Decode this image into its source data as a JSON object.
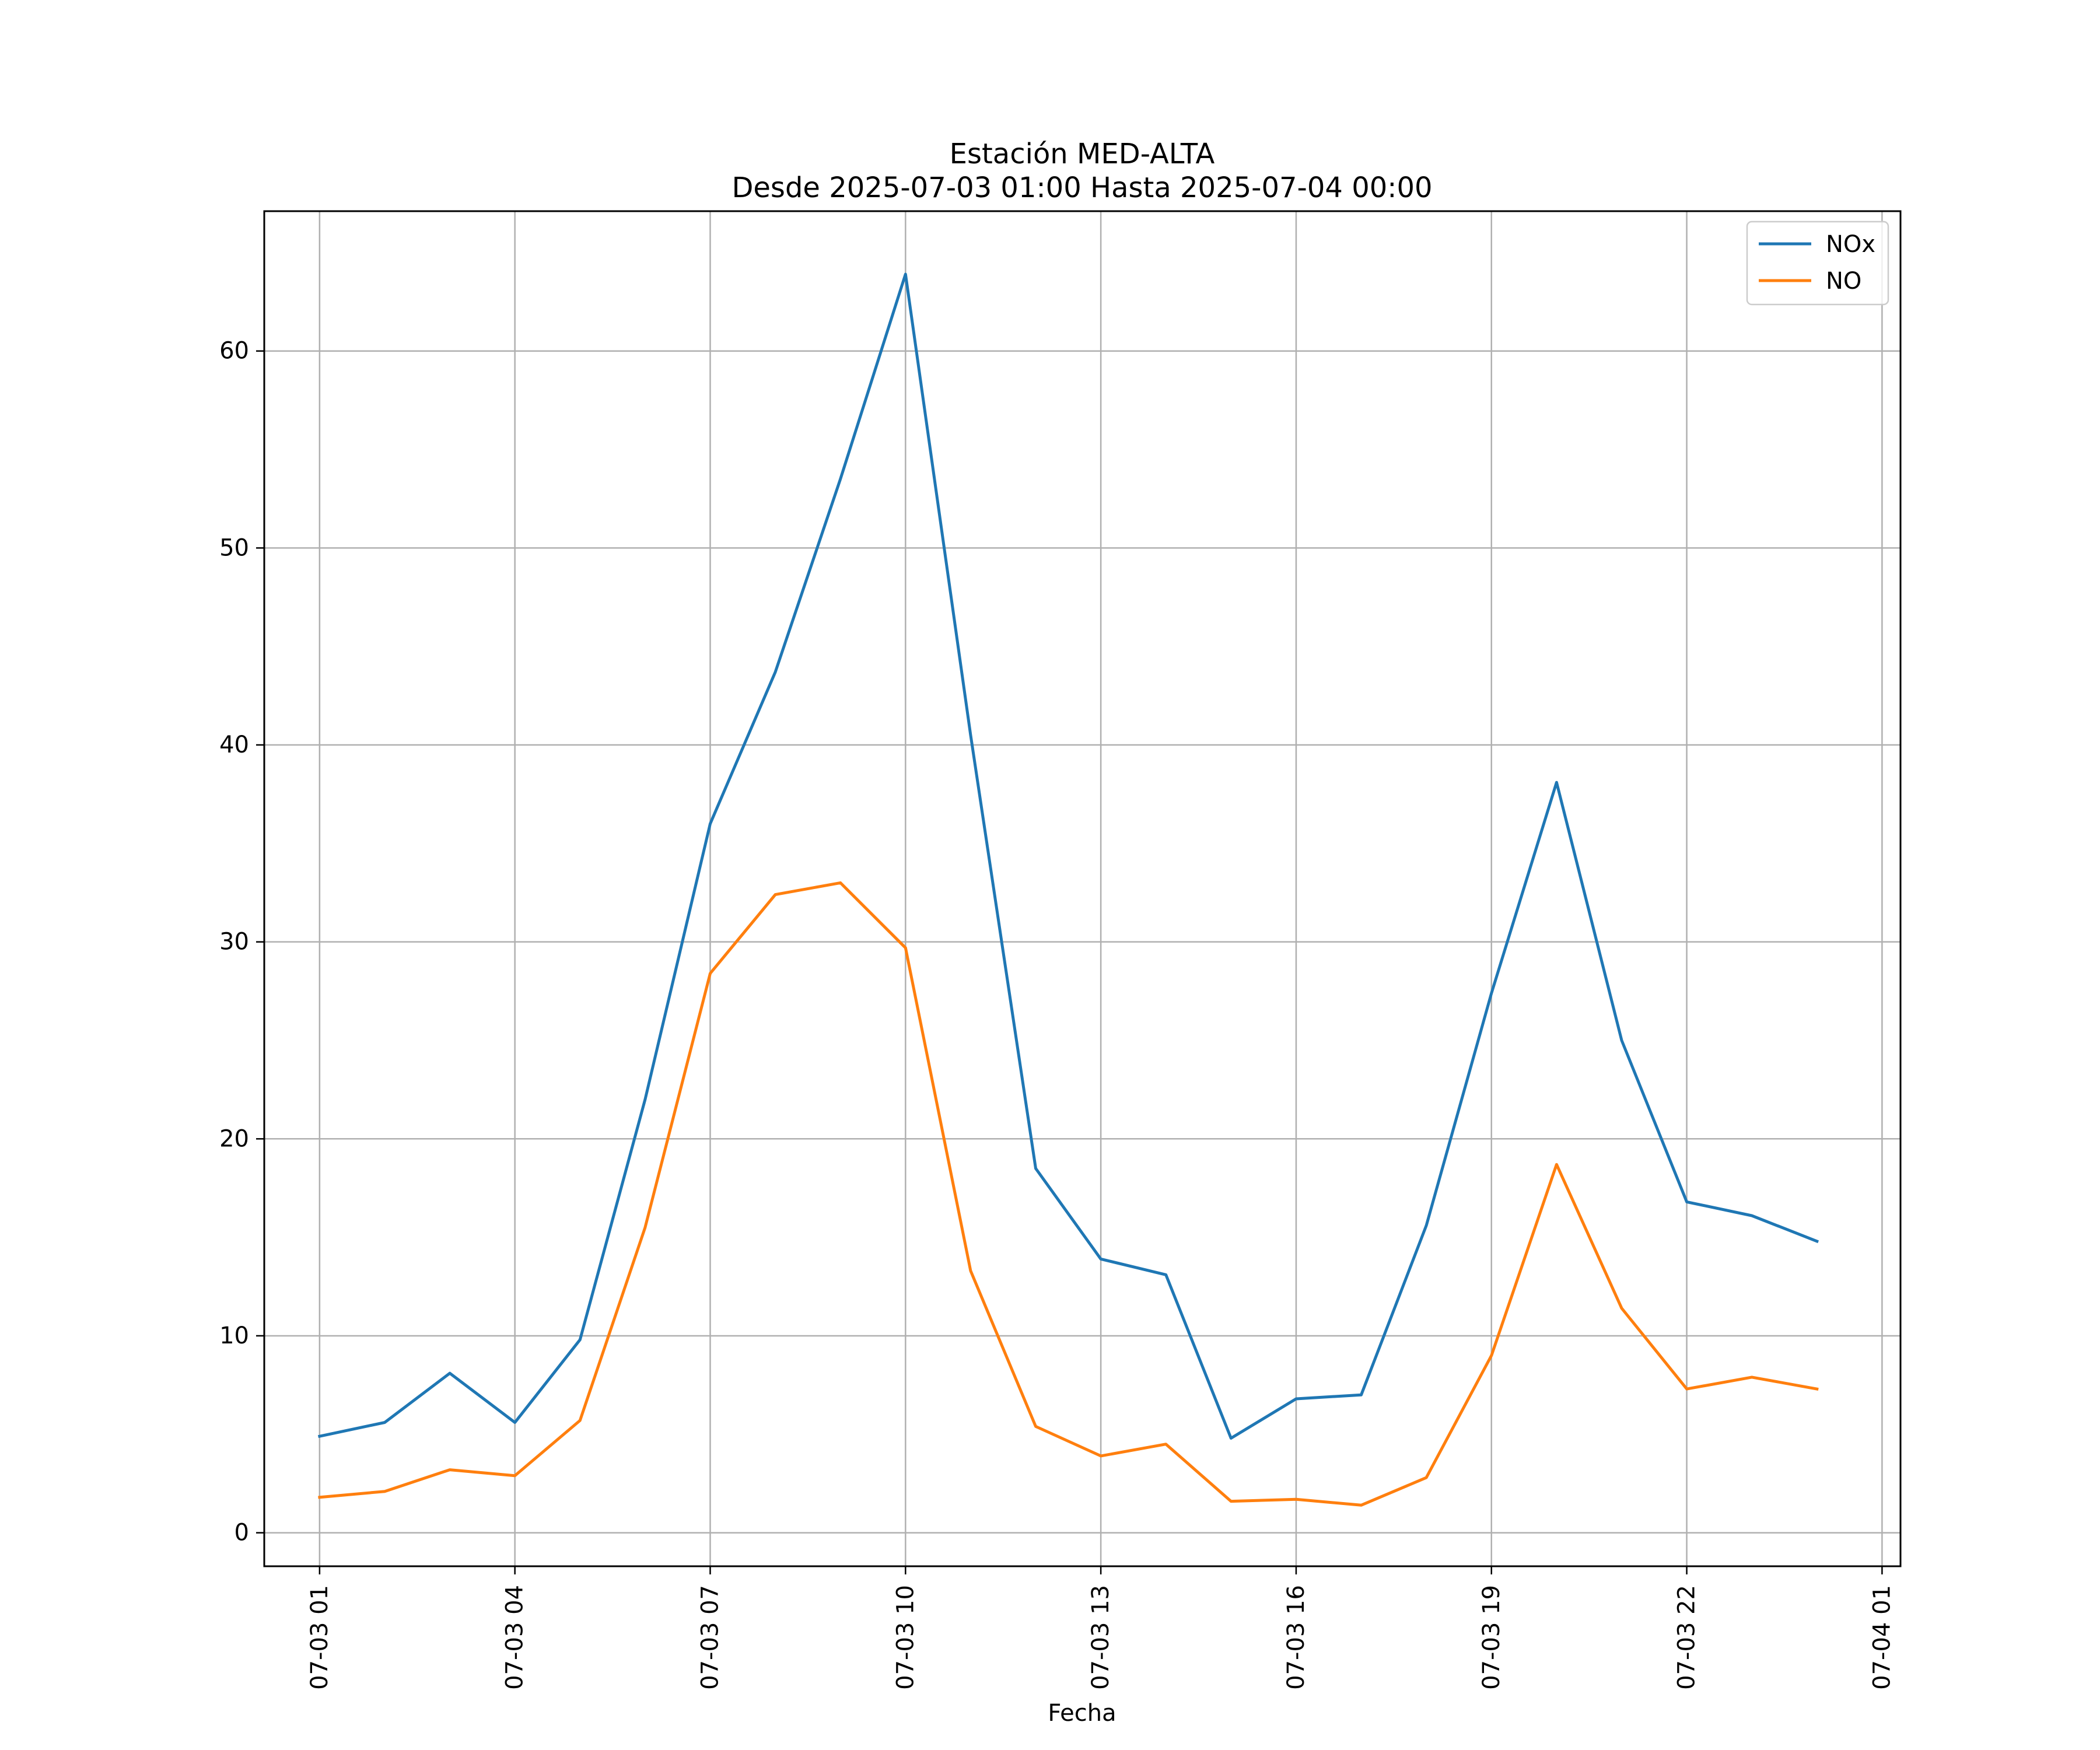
{
  "chart_data": {
    "type": "line",
    "title": "Estación MED-ALTA",
    "subtitle": "Desde 2025-07-03 01:00 Hasta 2025-07-04 00:00",
    "xlabel": "Fecha",
    "ylabel": "",
    "x": [
      "2025-07-03 01:00",
      "2025-07-03 02:00",
      "2025-07-03 03:00",
      "2025-07-03 04:00",
      "2025-07-03 05:00",
      "2025-07-03 06:00",
      "2025-07-03 07:00",
      "2025-07-03 08:00",
      "2025-07-03 09:00",
      "2025-07-03 10:00",
      "2025-07-03 11:00",
      "2025-07-03 12:00",
      "2025-07-03 13:00",
      "2025-07-03 14:00",
      "2025-07-03 15:00",
      "2025-07-03 16:00",
      "2025-07-03 17:00",
      "2025-07-03 18:00",
      "2025-07-03 19:00",
      "2025-07-03 20:00",
      "2025-07-03 21:00",
      "2025-07-03 22:00",
      "2025-07-03 23:00",
      "2025-07-04 00:00"
    ],
    "xlim": [
      "2025-07-03 00:09",
      "2025-07-04 01:17"
    ],
    "x_ticks": [
      "2025-07-03 01:00",
      "2025-07-03 04:00",
      "2025-07-03 07:00",
      "2025-07-03 10:00",
      "2025-07-03 13:00",
      "2025-07-03 16:00",
      "2025-07-03 19:00",
      "2025-07-03 22:00",
      "2025-07-04 01:00"
    ],
    "x_tick_labels": [
      "07-03 01",
      "07-03 04",
      "07-03 07",
      "07-03 10",
      "07-03 13",
      "07-03 16",
      "07-03 19",
      "07-03 22",
      "07-04 01"
    ],
    "ylim": [
      -1.7,
      67.1
    ],
    "y_ticks": [
      0,
      10,
      20,
      30,
      40,
      50,
      60
    ],
    "y_tick_labels": [
      "0",
      "10",
      "20",
      "30",
      "40",
      "50",
      "60"
    ],
    "grid": true,
    "legend_position": "top-right",
    "series": [
      {
        "name": "NOx",
        "color": "#1f77b4",
        "values": [
          4.9,
          5.6,
          8.1,
          5.6,
          9.8,
          22.0,
          36.0,
          43.7,
          53.5,
          63.9,
          40.5,
          18.5,
          13.9,
          13.1,
          4.8,
          6.8,
          7.0,
          15.6,
          27.4,
          38.1,
          25.0,
          16.8,
          16.1,
          14.8
        ]
      },
      {
        "name": "NO",
        "color": "#ff7f0e",
        "values": [
          1.8,
          2.1,
          3.2,
          2.9,
          5.7,
          15.5,
          28.4,
          32.4,
          33.0,
          29.7,
          13.3,
          5.4,
          3.9,
          4.5,
          1.6,
          1.7,
          1.4,
          2.8,
          9.0,
          18.7,
          11.4,
          7.3,
          7.9,
          7.3
        ]
      }
    ]
  }
}
